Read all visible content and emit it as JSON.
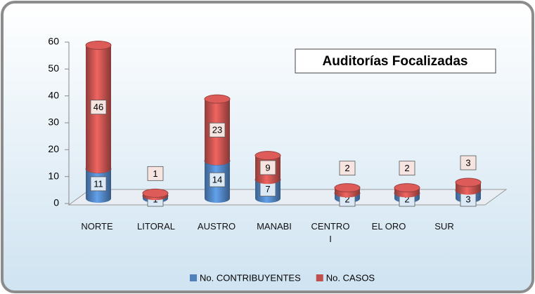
{
  "chart_data": {
    "type": "bar",
    "stacked": true,
    "title": "Auditorías Focalizadas",
    "categories": [
      "NORTE",
      "LITORAL",
      "AUSTRO",
      "MANABI",
      "CENTRO I",
      "EL ORO",
      "SUR"
    ],
    "series": [
      {
        "name": "No. CONTRIBUYENTES",
        "color": "#4f81bd",
        "values": [
          11,
          1,
          14,
          7,
          2,
          2,
          3
        ]
      },
      {
        "name": "No. CASOS",
        "color": "#c0504d",
        "values": [
          46,
          1,
          23,
          9,
          2,
          2,
          3
        ]
      }
    ],
    "ylim": [
      0,
      60
    ],
    "yticks": [
      0,
      10,
      20,
      30,
      40,
      50,
      60
    ],
    "legend": "bottom"
  }
}
